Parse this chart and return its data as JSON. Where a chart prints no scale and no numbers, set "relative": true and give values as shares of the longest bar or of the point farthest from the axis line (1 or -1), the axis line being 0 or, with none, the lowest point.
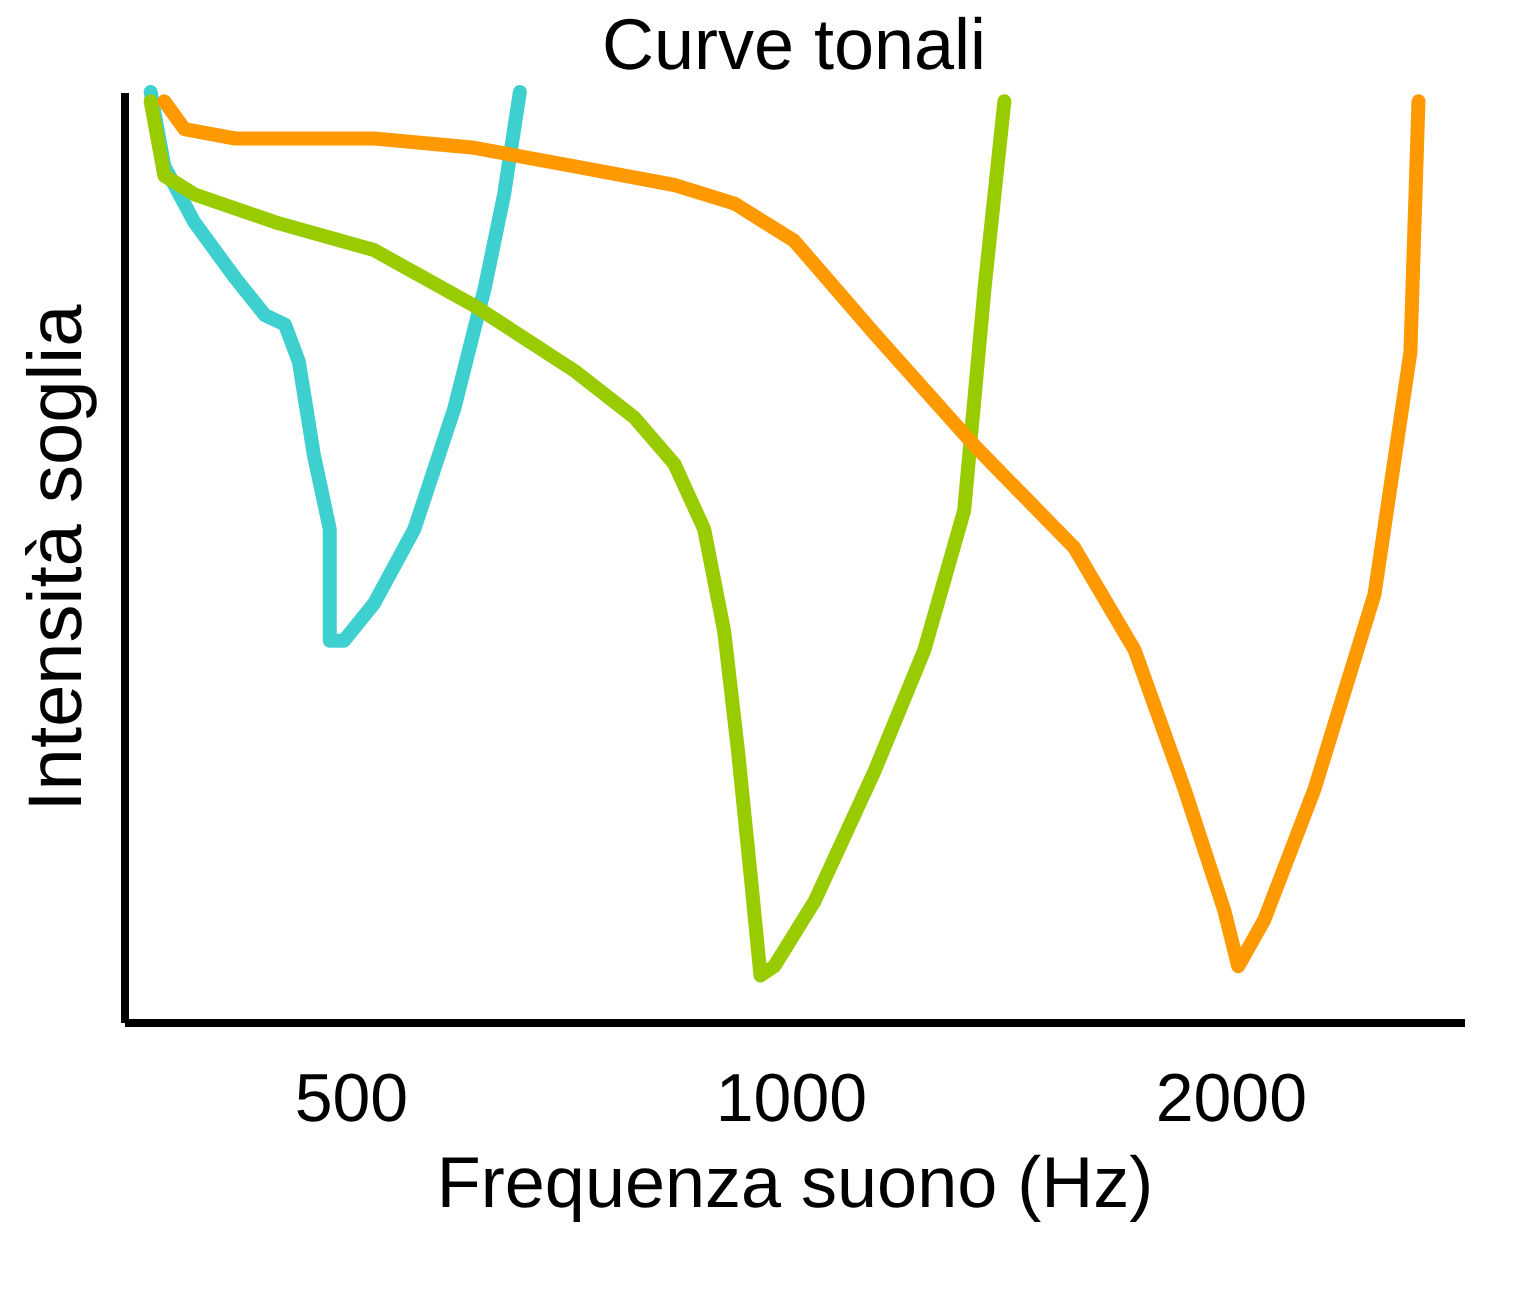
{
  "chart_data": {
    "type": "line",
    "title": "Curve tonali",
    "xlabel": "Frequenza suono (Hz)",
    "ylabel": "Intensità soglia",
    "relative": true,
    "log": "x",
    "xlim": [
      350,
      2890
    ],
    "xticks": [
      500,
      1000,
      2000
    ],
    "series": [
      {
        "color": "#3ecfcf",
        "x": [
          365,
          373,
          391,
          417,
          437,
          451,
          461,
          472,
          484,
          484,
          495,
          519,
          553,
          589,
          618,
          637,
          653
        ],
        "values": [
          1.0,
          0.92,
          0.86,
          0.8,
          0.76,
          0.75,
          0.71,
          0.61,
          0.53,
          0.41,
          0.41,
          0.45,
          0.53,
          0.66,
          0.79,
          0.89,
          1.0
        ]
      },
      {
        "color": "#99cc00",
        "x": [
          365,
          373,
          391,
          444,
          519,
          608,
          712,
          782,
          833,
          873,
          901,
          921,
          939,
          954,
          975,
          1039,
          1142,
          1235,
          1315,
          1358,
          1401
        ],
        "values": [
          0.99,
          0.91,
          0.89,
          0.86,
          0.83,
          0.77,
          0.7,
          0.65,
          0.6,
          0.53,
          0.42,
          0.29,
          0.16,
          0.05,
          0.06,
          0.13,
          0.27,
          0.4,
          0.55,
          0.79,
          0.99
        ]
      },
      {
        "color": "#ff9900",
        "x": [
          373,
          385,
          417,
          519,
          608,
          712,
          833,
          916,
          1006,
          1142,
          1336,
          1564,
          1720,
          1861,
          1981,
          2025,
          2110,
          2283,
          2510,
          2656,
          2690
        ],
        "values": [
          0.99,
          0.96,
          0.95,
          0.95,
          0.94,
          0.92,
          0.9,
          0.88,
          0.84,
          0.74,
          0.62,
          0.51,
          0.4,
          0.25,
          0.12,
          0.06,
          0.11,
          0.25,
          0.46,
          0.72,
          0.99
        ]
      }
    ]
  }
}
